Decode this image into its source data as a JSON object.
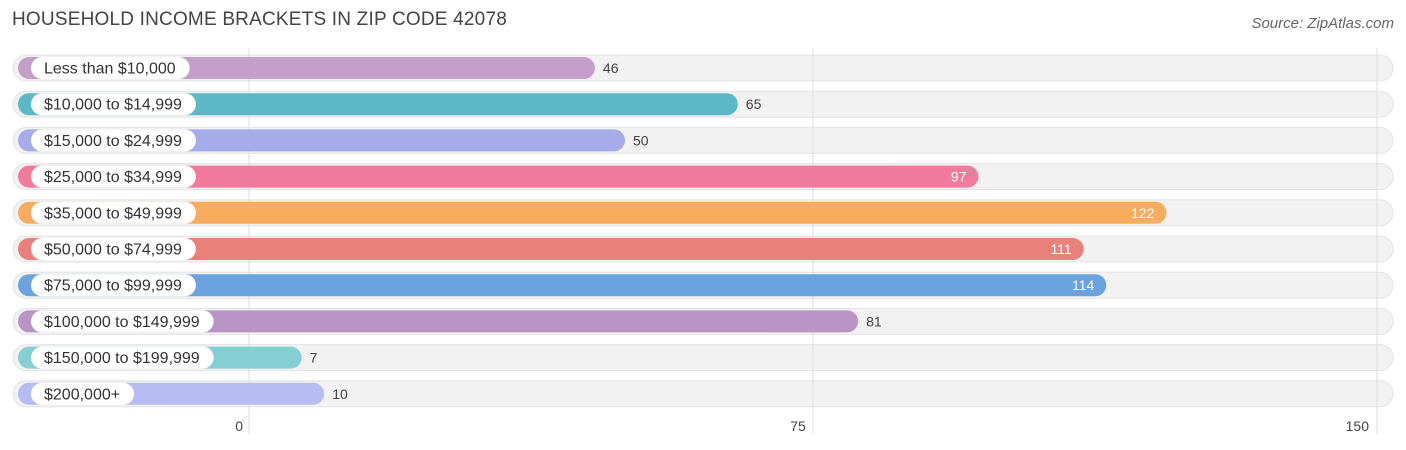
{
  "chart_data": {
    "type": "bar",
    "orientation": "horizontal",
    "title": "HOUSEHOLD INCOME BRACKETS IN ZIP CODE 42078",
    "source": "Source: ZipAtlas.com",
    "categories": [
      "Less than $10,000",
      "$10,000 to $14,999",
      "$15,000 to $24,999",
      "$25,000 to $34,999",
      "$35,000 to $49,999",
      "$50,000 to $74,999",
      "$75,000 to $99,999",
      "$100,000 to $149,999",
      "$150,000 to $199,999",
      "$200,000+"
    ],
    "values": [
      46,
      65,
      50,
      97,
      122,
      111,
      114,
      81,
      7,
      10
    ],
    "colors": [
      "#c49fc9",
      "#5bb8c4",
      "#a6acea",
      "#f27a9e",
      "#f8ac5e",
      "#e98079",
      "#6aa3df",
      "#b994c5",
      "#84cfd3",
      "#b6bdf2"
    ],
    "xlim": [
      0,
      150
    ],
    "xticks": [
      0,
      75,
      150
    ],
    "xlabel": "",
    "ylabel": "",
    "grid": true,
    "legend": "none"
  }
}
